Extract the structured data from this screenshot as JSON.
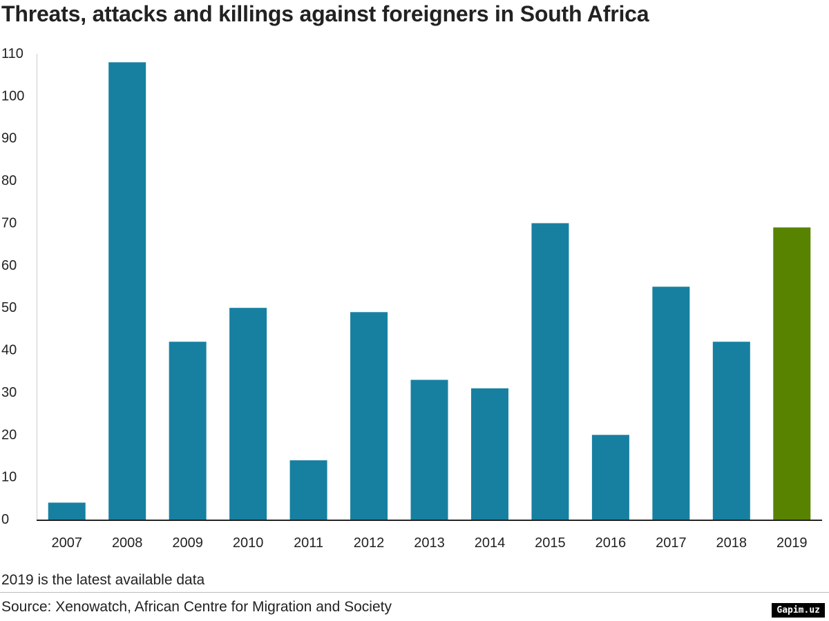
{
  "chart_data": {
    "type": "bar",
    "title": "Threats, attacks and killings against foreigners in South Africa",
    "categories": [
      "2007",
      "2008",
      "2009",
      "2010",
      "2011",
      "2012",
      "2013",
      "2014",
      "2015",
      "2016",
      "2017",
      "2018",
      "2019"
    ],
    "values": [
      4,
      108,
      42,
      50,
      14,
      49,
      33,
      31,
      70,
      20,
      55,
      42,
      69
    ],
    "ylim": [
      0,
      110
    ],
    "yticks": [
      0,
      10,
      20,
      30,
      40,
      50,
      60,
      70,
      80,
      90,
      100,
      110
    ],
    "xlabel": "",
    "ylabel": "",
    "grid": false,
    "colors": {
      "default": "#1780a1",
      "highlight": "#588300"
    },
    "highlight_category": "2019"
  },
  "footer": {
    "note": "2019 is the latest available data",
    "source": "Source: Xenowatch, African Centre for Migration and Society"
  },
  "watermark": "Gapim.uz"
}
